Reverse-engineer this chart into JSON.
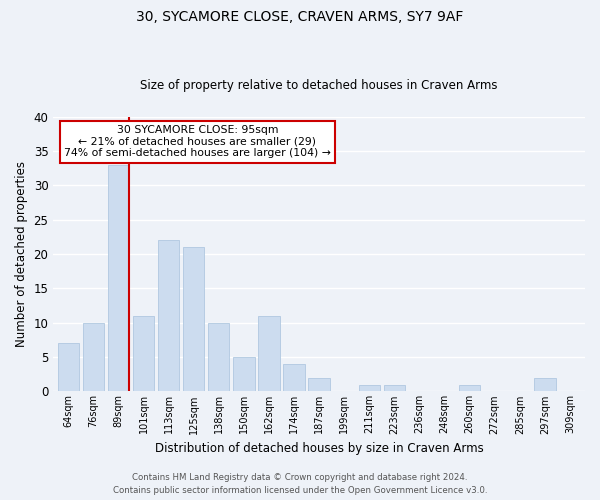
{
  "title": "30, SYCAMORE CLOSE, CRAVEN ARMS, SY7 9AF",
  "subtitle": "Size of property relative to detached houses in Craven Arms",
  "xlabel": "Distribution of detached houses by size in Craven Arms",
  "ylabel": "Number of detached properties",
  "bar_labels": [
    "64sqm",
    "76sqm",
    "89sqm",
    "101sqm",
    "113sqm",
    "125sqm",
    "138sqm",
    "150sqm",
    "162sqm",
    "174sqm",
    "187sqm",
    "199sqm",
    "211sqm",
    "223sqm",
    "236sqm",
    "248sqm",
    "260sqm",
    "272sqm",
    "285sqm",
    "297sqm",
    "309sqm"
  ],
  "bar_values": [
    7,
    10,
    33,
    11,
    22,
    21,
    10,
    5,
    11,
    4,
    2,
    0,
    1,
    1,
    0,
    0,
    1,
    0,
    0,
    2,
    0
  ],
  "bar_color": "#ccdcef",
  "bar_edge_color": "#b0c8e0",
  "vline_color": "#cc0000",
  "vline_x": 2.425,
  "ylim": [
    0,
    40
  ],
  "yticks": [
    0,
    5,
    10,
    15,
    20,
    25,
    30,
    35,
    40
  ],
  "annotation_title": "30 SYCAMORE CLOSE: 95sqm",
  "annotation_line1": "← 21% of detached houses are smaller (29)",
  "annotation_line2": "74% of semi-detached houses are larger (104) →",
  "annotation_box_color": "#ffffff",
  "annotation_box_edge": "#cc0000",
  "footer_line1": "Contains HM Land Registry data © Crown copyright and database right 2024.",
  "footer_line2": "Contains public sector information licensed under the Open Government Licence v3.0.",
  "bg_color": "#eef2f8",
  "grid_color": "#ffffff"
}
